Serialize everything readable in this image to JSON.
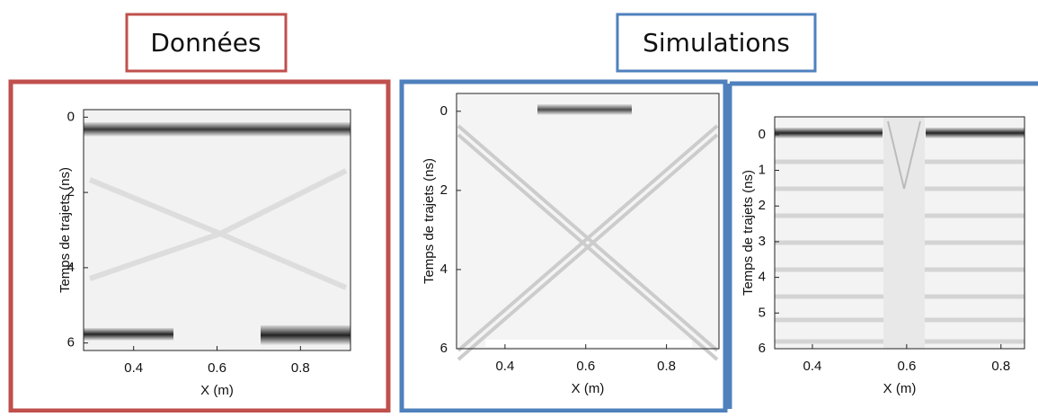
{
  "labels": {
    "data": "Données",
    "simulations": "Simulations"
  },
  "panels": [
    {
      "xlabel": "X (m)",
      "ylabel": "Temps de trajets (ns)",
      "xlim": [
        0.28,
        0.92
      ],
      "ylim": [
        -0.2,
        6.2
      ],
      "xticks": [
        0.4,
        0.6,
        0.8
      ],
      "yticks": [
        0,
        2,
        4,
        6
      ]
    },
    {
      "xlabel": "X (m)",
      "ylabel": "Temps de trajets (ns)",
      "xlim": [
        0.28,
        0.93
      ],
      "ylim": [
        -0.45,
        6
      ],
      "xticks": [
        0.4,
        0.6,
        0.8
      ],
      "yticks": [
        0,
        2,
        4,
        6
      ]
    },
    {
      "xlabel": "X (m)",
      "ylabel": "Temps de trajets (ns)",
      "xlim": [
        0.32,
        0.85
      ],
      "ylim": [
        -0.5,
        6
      ],
      "xticks": [
        0.4,
        0.6,
        0.8
      ],
      "yticks": [
        0,
        1,
        2,
        3,
        4,
        5,
        6
      ]
    }
  ]
}
